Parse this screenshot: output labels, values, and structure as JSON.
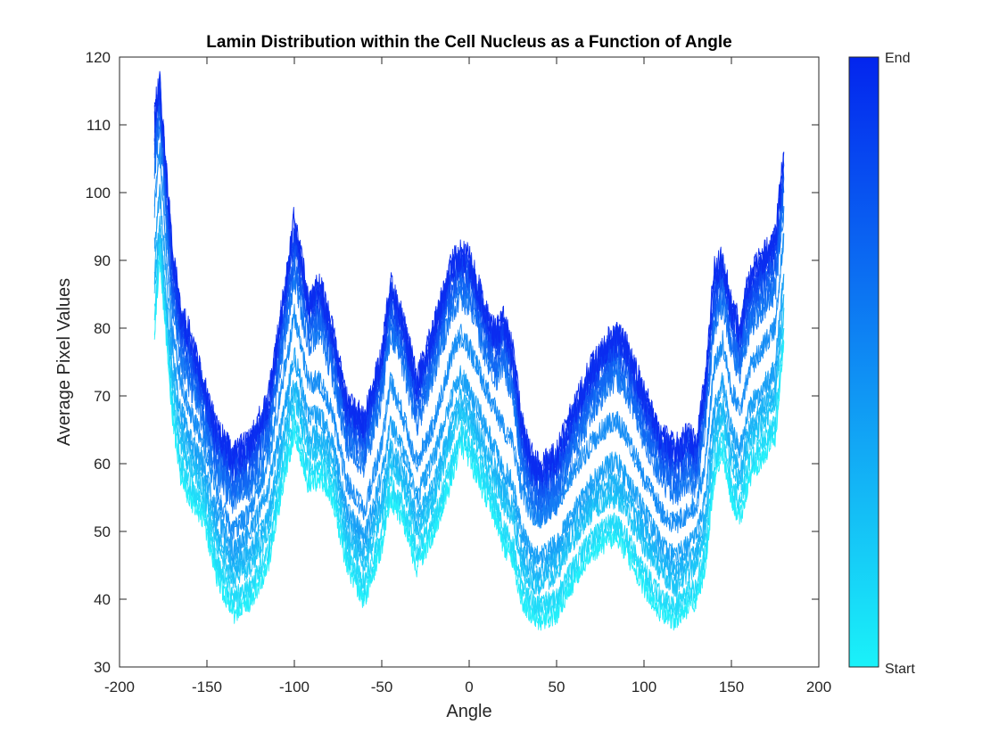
{
  "chart_data": {
    "type": "line",
    "title": "Lamin Distribution within the Cell Nucleus as a Function of Angle",
    "xlabel": "Angle",
    "ylabel": "Average Pixel Values",
    "xlim": [
      -200,
      200
    ],
    "ylim": [
      30,
      120
    ],
    "xticks": [
      -200,
      -150,
      -100,
      -50,
      0,
      50,
      100,
      150,
      200
    ],
    "yticks": [
      30,
      40,
      50,
      60,
      70,
      80,
      90,
      100,
      110,
      120
    ],
    "xtick_labels": [
      "-200",
      "-150",
      "-100",
      "-50",
      "0",
      "50",
      "100",
      "150",
      "200"
    ],
    "ytick_labels": [
      "30",
      "40",
      "50",
      "60",
      "70",
      "80",
      "90",
      "100",
      "110",
      "120"
    ],
    "grid": false,
    "legend": "none",
    "colorbar": {
      "start_label": "Start",
      "end_label": "End",
      "start_color": "#1af2f9",
      "end_color": "#0325ee"
    },
    "series_colors": {
      "start": "#22eefa",
      "end": "#0a2cf0"
    },
    "x": [
      -180,
      -177,
      -170,
      -165,
      -160,
      -152,
      -145,
      -135,
      -125,
      -115,
      -108,
      -100,
      -92,
      -85,
      -78,
      -70,
      -60,
      -50,
      -45,
      -38,
      -30,
      -20,
      -10,
      -5,
      0,
      5,
      10,
      15,
      20,
      25,
      30,
      35,
      40,
      50,
      60,
      70,
      80,
      85,
      90,
      100,
      110,
      118,
      125,
      130,
      135,
      140,
      145,
      150,
      155,
      160,
      165,
      170,
      175,
      180
    ],
    "series": [
      {
        "values": [
          80,
          91,
          68,
          58,
          55,
          52,
          44,
          38,
          40,
          45,
          55,
          65,
          57,
          58,
          55,
          45,
          40,
          48,
          55,
          52,
          45,
          50,
          58,
          63,
          61,
          58,
          55,
          52,
          48,
          46,
          40,
          38,
          37,
          38,
          43,
          47,
          49,
          49,
          47,
          42,
          38,
          37,
          39,
          40,
          45,
          58,
          62,
          55,
          52,
          58,
          60,
          62,
          64,
          78
        ]
      },
      {
        "values": [
          82,
          92,
          70,
          60,
          57,
          54,
          46,
          40,
          42,
          47,
          57,
          67,
          59,
          60,
          57,
          47,
          42,
          50,
          57,
          54,
          47,
          52,
          60,
          65,
          63,
          60,
          57,
          54,
          50,
          48,
          42,
          40,
          39,
          40,
          45,
          49,
          51,
          51,
          49,
          44,
          40,
          39,
          41,
          42,
          47,
          60,
          64,
          57,
          54,
          60,
          62,
          64,
          66,
          80
        ]
      },
      {
        "values": [
          86,
          94,
          72,
          63,
          60,
          56,
          49,
          43,
          45,
          50,
          60,
          70,
          62,
          62,
          59,
          49,
          45,
          53,
          60,
          57,
          50,
          55,
          64,
          68,
          66,
          63,
          60,
          57,
          54,
          52,
          45,
          43,
          42,
          44,
          49,
          53,
          55,
          55,
          53,
          48,
          44,
          42,
          44,
          45,
          50,
          63,
          67,
          60,
          57,
          63,
          65,
          67,
          69,
          83
        ]
      },
      {
        "values": [
          88,
          96,
          74,
          65,
          62,
          58,
          51,
          45,
          47,
          52,
          62,
          72,
          64,
          64,
          61,
          51,
          47,
          55,
          62,
          59,
          52,
          57,
          66,
          70,
          68,
          65,
          62,
          59,
          56,
          54,
          47,
          45,
          44,
          46,
          51,
          55,
          57,
          57,
          55,
          50,
          46,
          44,
          46,
          47,
          52,
          65,
          69,
          62,
          59,
          65,
          67,
          69,
          71,
          85
        ]
      },
      {
        "values": [
          92,
          100,
          77,
          68,
          64,
          60,
          53,
          47,
          50,
          56,
          65,
          76,
          67,
          67,
          63,
          53,
          49,
          58,
          66,
          62,
          55,
          61,
          70,
          73,
          71,
          68,
          65,
          62,
          59,
          57,
          50,
          47,
          46,
          48,
          53,
          57,
          60,
          60,
          58,
          53,
          48,
          46,
          48,
          49,
          55,
          68,
          72,
          65,
          62,
          68,
          70,
          72,
          74,
          88
        ]
      },
      {
        "values": [
          98,
          106,
          80,
          72,
          68,
          63,
          56,
          50,
          53,
          60,
          70,
          82,
          72,
          72,
          67,
          57,
          53,
          63,
          72,
          67,
          60,
          66,
          76,
          79,
          77,
          74,
          71,
          68,
          65,
          63,
          56,
          53,
          52,
          54,
          59,
          63,
          66,
          66,
          64,
          58,
          53,
          51,
          53,
          54,
          60,
          74,
          78,
          71,
          68,
          74,
          76,
          78,
          80,
          94
        ]
      },
      {
        "values": [
          104,
          110,
          84,
          76,
          72,
          66,
          59,
          55,
          57,
          63,
          75,
          88,
          78,
          80,
          73,
          63,
          60,
          70,
          80,
          75,
          66,
          74,
          83,
          85,
          84,
          80,
          76,
          73,
          75,
          70,
          60,
          55,
          53,
          55,
          62,
          68,
          72,
          73,
          71,
          64,
          58,
          56,
          58,
          57,
          66,
          80,
          84,
          77,
          74,
          80,
          82,
          84,
          86,
          98
        ]
      },
      {
        "values": [
          106,
          112,
          86,
          78,
          74,
          68,
          61,
          57,
          59,
          65,
          77,
          90,
          80,
          82,
          75,
          65,
          62,
          72,
          82,
          77,
          68,
          76,
          85,
          87,
          86,
          82,
          78,
          75,
          77,
          72,
          62,
          57,
          55,
          57,
          64,
          70,
          74,
          75,
          73,
          66,
          60,
          58,
          60,
          59,
          68,
          82,
          86,
          79,
          76,
          82,
          84,
          86,
          88,
          100
        ]
      },
      {
        "values": [
          108,
          114,
          88,
          80,
          76,
          70,
          63,
          59,
          61,
          67,
          79,
          92,
          82,
          84,
          77,
          67,
          64,
          74,
          84,
          79,
          70,
          78,
          87,
          89,
          88,
          84,
          80,
          77,
          79,
          74,
          64,
          59,
          57,
          59,
          66,
          72,
          76,
          77,
          75,
          68,
          62,
          60,
          62,
          61,
          70,
          84,
          88,
          81,
          78,
          84,
          86,
          88,
          90,
          102
        ]
      },
      {
        "values": [
          110,
          115,
          90,
          81,
          78,
          71,
          64,
          60,
          62,
          68,
          80,
          94,
          83,
          85,
          78,
          68,
          65,
          75,
          85,
          80,
          71,
          79,
          88,
          90,
          89,
          85,
          81,
          78,
          80,
          75,
          65,
          60,
          58,
          60,
          67,
          73,
          77,
          78,
          76,
          69,
          63,
          61,
          63,
          62,
          71,
          86,
          89,
          82,
          79,
          86,
          88,
          90,
          92,
          104
        ]
      },
      {
        "values": [
          112,
          116,
          92,
          82,
          79,
          72,
          65,
          61,
          63,
          69,
          81,
          96,
          84,
          86,
          79,
          69,
          66,
          76,
          86,
          81,
          72,
          80,
          89,
          91,
          90,
          86,
          82,
          79,
          81,
          76,
          66,
          61,
          59,
          61,
          68,
          74,
          78,
          79,
          77,
          70,
          64,
          62,
          64,
          63,
          72,
          88,
          90,
          83,
          80,
          87,
          89,
          91,
          93,
          106
        ]
      }
    ]
  }
}
